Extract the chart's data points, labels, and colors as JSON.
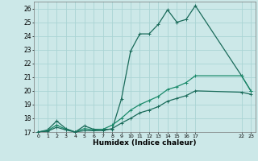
{
  "xlabel": "Humidex (Indice chaleur)",
  "bg_color": "#cce8e8",
  "grid_color": "#aad4d4",
  "line_color1": "#1a6b5a",
  "line_color2": "#1a8a6a",
  "ylim": [
    17,
    26.5
  ],
  "xlim": [
    -0.5,
    23.5
  ],
  "xticks": [
    0,
    1,
    2,
    3,
    4,
    5,
    6,
    7,
    8,
    9,
    10,
    11,
    12,
    13,
    14,
    15,
    16,
    17,
    22,
    23
  ],
  "yticks": [
    17,
    18,
    19,
    20,
    21,
    22,
    23,
    24,
    25,
    26
  ],
  "series1_x": [
    0,
    1,
    2,
    3,
    4,
    5,
    6,
    7,
    8,
    9,
    10,
    11,
    12,
    13,
    14,
    15,
    16,
    17,
    22,
    23
  ],
  "series1_y": [
    17.0,
    17.15,
    17.8,
    17.25,
    17.0,
    17.45,
    17.2,
    17.2,
    17.2,
    19.4,
    22.9,
    24.15,
    24.15,
    24.85,
    25.9,
    25.0,
    25.2,
    26.2,
    21.1,
    20.0
  ],
  "series2_x": [
    0,
    1,
    2,
    3,
    4,
    5,
    6,
    7,
    8,
    9,
    10,
    11,
    12,
    13,
    14,
    15,
    16,
    17,
    22,
    23
  ],
  "series2_y": [
    17.0,
    17.1,
    17.5,
    17.2,
    17.0,
    17.25,
    17.15,
    17.2,
    17.5,
    18.0,
    18.6,
    19.0,
    19.3,
    19.6,
    20.1,
    20.3,
    20.6,
    21.1,
    21.1,
    20.0
  ],
  "series3_x": [
    0,
    1,
    2,
    3,
    4,
    5,
    6,
    7,
    8,
    9,
    10,
    11,
    12,
    13,
    14,
    15,
    16,
    17,
    22,
    23
  ],
  "series3_y": [
    17.0,
    17.05,
    17.35,
    17.15,
    17.0,
    17.1,
    17.1,
    17.1,
    17.25,
    17.65,
    18.0,
    18.4,
    18.6,
    18.85,
    19.25,
    19.45,
    19.65,
    20.0,
    19.9,
    19.75
  ]
}
